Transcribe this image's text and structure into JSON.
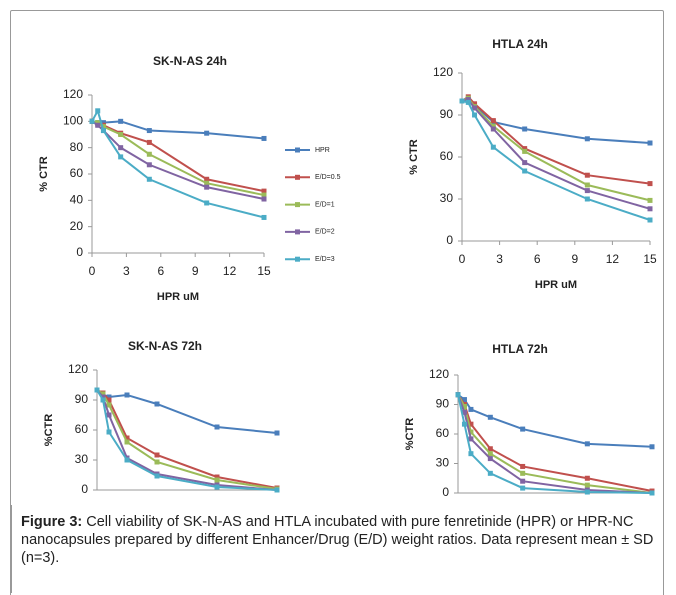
{
  "chart_data": [
    {
      "type": "line",
      "title": "SK-N-AS 24h",
      "x_label": "HPR uM",
      "y_label": "% CTR",
      "x": [
        0,
        0.5,
        1,
        2.5,
        5,
        10,
        15
      ],
      "xlim": [
        0,
        15
      ],
      "xticks": [
        0,
        3,
        6,
        9,
        12,
        15
      ],
      "ylim": [
        0,
        120
      ],
      "yticks": [
        0,
        20,
        40,
        60,
        80,
        100,
        120
      ],
      "legend": "right",
      "series": [
        {
          "name": "HPR",
          "color": "#4a7ebb",
          "values": [
            100,
            99,
            99,
            100,
            93,
            91,
            87
          ]
        },
        {
          "name": "E/D=0.5",
          "color": "#c0504d",
          "values": [
            100,
            98,
            97,
            91,
            84,
            56,
            47
          ]
        },
        {
          "name": "E/D=1",
          "color": "#9bbb59",
          "values": [
            100,
            99,
            96,
            90,
            75,
            53,
            44
          ]
        },
        {
          "name": "E/D=2",
          "color": "#8064a2",
          "values": [
            100,
            97,
            93,
            80,
            67,
            50,
            41
          ]
        },
        {
          "name": "E/D=3",
          "color": "#4bacc6",
          "values": [
            100,
            108,
            93,
            73,
            56,
            38,
            27
          ]
        }
      ]
    },
    {
      "type": "line",
      "title": "HTLA 24h",
      "x_label": "HPR uM",
      "y_label": "% CTR",
      "x": [
        0,
        0.5,
        1,
        2.5,
        5,
        10,
        15
      ],
      "xlim": [
        0,
        15
      ],
      "xticks": [
        0,
        3,
        6,
        9,
        12,
        15
      ],
      "ylim": [
        0,
        120
      ],
      "yticks": [
        0,
        30,
        60,
        90,
        120
      ],
      "series": [
        {
          "color": "#4a7ebb",
          "values": [
            100,
            100,
            97,
            85,
            80,
            73,
            70
          ]
        },
        {
          "color": "#c0504d",
          "values": [
            100,
            103,
            98,
            86,
            66,
            47,
            41
          ]
        },
        {
          "color": "#9bbb59",
          "values": [
            100,
            102,
            96,
            82,
            64,
            40,
            29
          ]
        },
        {
          "color": "#8064a2",
          "values": [
            100,
            101,
            95,
            80,
            56,
            36,
            23
          ]
        },
        {
          "color": "#4bacc6",
          "values": [
            100,
            99,
            90,
            67,
            50,
            30,
            15
          ]
        }
      ]
    },
    {
      "type": "line",
      "title": "SK-N-AS 72h",
      "y_label": "%CTR",
      "x": [
        0,
        0.5,
        1,
        2.5,
        5,
        10,
        15
      ],
      "xlim": [
        0,
        15
      ],
      "ylim": [
        0,
        120
      ],
      "yticks": [
        0,
        30,
        60,
        90,
        120
      ],
      "series": [
        {
          "color": "#4a7ebb",
          "values": [
            100,
            95,
            93,
            95,
            86,
            63,
            57
          ]
        },
        {
          "color": "#c0504d",
          "values": [
            100,
            97,
            90,
            52,
            35,
            13,
            2
          ]
        },
        {
          "color": "#9bbb59",
          "values": [
            100,
            96,
            85,
            48,
            28,
            10,
            1
          ]
        },
        {
          "color": "#8064a2",
          "values": [
            100,
            93,
            75,
            32,
            16,
            5,
            0
          ]
        },
        {
          "color": "#4bacc6",
          "values": [
            100,
            90,
            58,
            30,
            14,
            3,
            0
          ]
        }
      ]
    },
    {
      "type": "line",
      "title": "HTLA 72h",
      "y_label": "%CTR",
      "x": [
        0,
        0.5,
        1,
        2.5,
        5,
        10,
        15
      ],
      "xlim": [
        0,
        15
      ],
      "ylim": [
        0,
        120
      ],
      "yticks": [
        0,
        30,
        60,
        90,
        120
      ],
      "series": [
        {
          "color": "#4a7ebb",
          "values": [
            100,
            95,
            85,
            77,
            65,
            50,
            47
          ]
        },
        {
          "color": "#c0504d",
          "values": [
            100,
            90,
            70,
            45,
            27,
            15,
            2
          ]
        },
        {
          "color": "#9bbb59",
          "values": [
            100,
            88,
            62,
            40,
            20,
            8,
            0
          ]
        },
        {
          "color": "#8064a2",
          "values": [
            100,
            82,
            55,
            35,
            12,
            3,
            0
          ]
        },
        {
          "color": "#4bacc6",
          "values": [
            100,
            70,
            40,
            20,
            5,
            1,
            0
          ]
        }
      ]
    }
  ],
  "caption": {
    "label": "Figure 3:",
    "text": "Cell viability of SK-N-AS and HTLA incubated with pure fenretinide (HPR) or HPR-NC nanocapsules prepared by different Enhancer/Drug (E/D) weight ratios. Data represent mean ± SD (n=3)."
  }
}
